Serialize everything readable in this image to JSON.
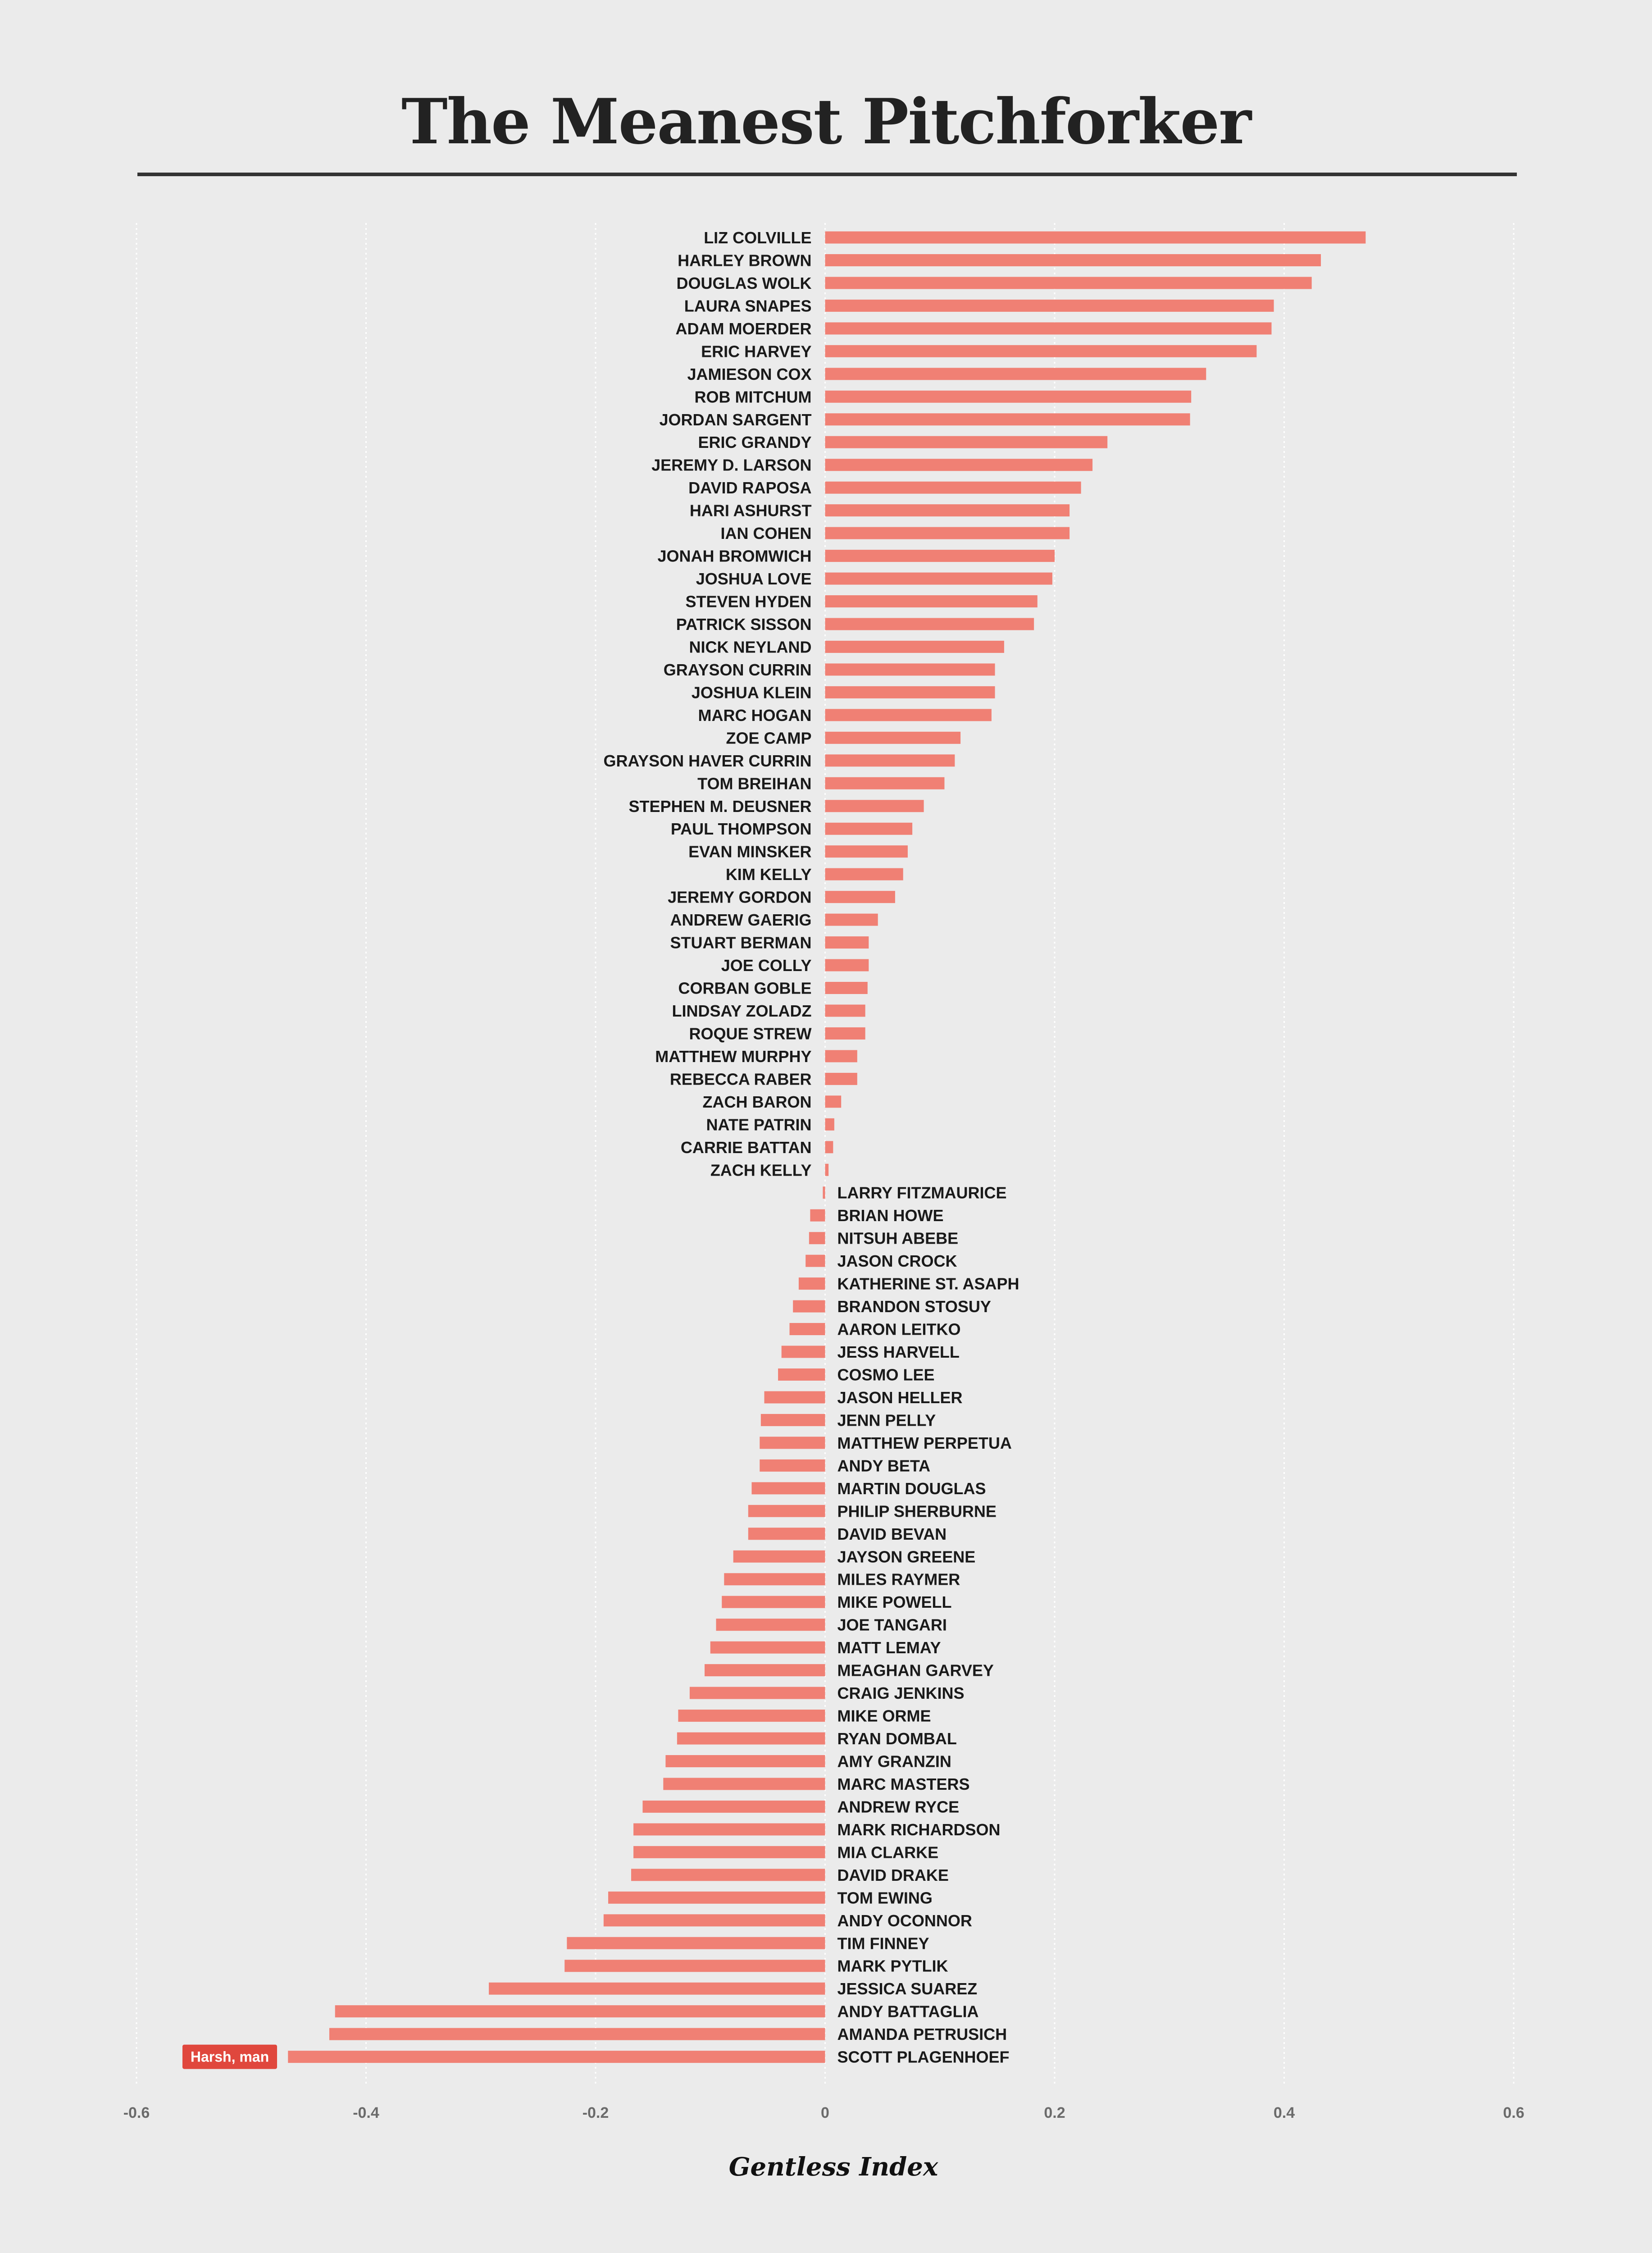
{
  "chart_data": {
    "type": "bar",
    "orientation": "horizontal",
    "title": "The Meanest Pitchforker",
    "xlabel": "Gentless Index",
    "ylabel": "",
    "xlim": [
      -0.6,
      0.6
    ],
    "xticks": [
      "-0.6",
      "-0.4",
      "-0.2",
      "0",
      "0.2",
      "0.4",
      "0.6"
    ],
    "grid": "vertical dotted",
    "bar_color": "#f08074",
    "categories": [
      "LIZ COLVILLE",
      "HARLEY BROWN",
      "DOUGLAS WOLK",
      "LAURA SNAPES",
      "ADAM MOERDER",
      "ERIC HARVEY",
      "JAMIESON COX",
      "ROB MITCHUM",
      "JORDAN SARGENT",
      "ERIC GRANDY",
      "JEREMY D. LARSON",
      "DAVID RAPOSA",
      "HARI ASHURST",
      "IAN COHEN",
      "JONAH BROMWICH",
      "JOSHUA LOVE",
      "STEVEN HYDEN",
      "PATRICK SISSON",
      "NICK NEYLAND",
      "GRAYSON CURRIN",
      "JOSHUA KLEIN",
      "MARC HOGAN",
      "ZOE CAMP",
      "GRAYSON HAVER CURRIN",
      "TOM BREIHAN",
      "STEPHEN M. DEUSNER",
      "PAUL THOMPSON",
      "EVAN MINSKER",
      "KIM KELLY",
      "JEREMY GORDON",
      "ANDREW GAERIG",
      "STUART BERMAN",
      "JOE COLLY",
      "CORBAN GOBLE",
      "LINDSAY ZOLADZ",
      "ROQUE STREW",
      "MATTHEW MURPHY",
      "REBECCA RABER",
      "ZACH BARON",
      "NATE PATRIN",
      "CARRIE BATTAN",
      "ZACH KELLY",
      "LARRY FITZMAURICE",
      "BRIAN HOWE",
      "NITSUH ABEBE",
      "JASON CROCK",
      "KATHERINE ST. ASAPH",
      "BRANDON STOSUY",
      "AARON LEITKO",
      "JESS HARVELL",
      "COSMO LEE",
      "JASON HELLER",
      "JENN PELLY",
      "MATTHEW PERPETUA",
      "ANDY BETA",
      "MARTIN DOUGLAS",
      "PHILIP SHERBURNE",
      "DAVID BEVAN",
      "JAYSON GREENE",
      "MILES RAYMER",
      "MIKE POWELL",
      "JOE TANGARI",
      "MATT LEMAY",
      "MEAGHAN GARVEY",
      "CRAIG JENKINS",
      "MIKE ORME",
      "RYAN DOMBAL",
      "AMY GRANZIN",
      "MARC MASTERS",
      "ANDREW RYCE",
      "MARK RICHARDSON",
      "MIA CLARKE",
      "DAVID DRAKE",
      "TOM EWING",
      "ANDY OCONNOR",
      "TIM FINNEY",
      "MARK PYTLIK",
      "JESSICA SUAREZ",
      "ANDY BATTAGLIA",
      "AMANDA PETRUSICH",
      "SCOTT PLAGENHOEF"
    ],
    "values": [
      0.471,
      0.432,
      0.424,
      0.391,
      0.389,
      0.376,
      0.332,
      0.319,
      0.318,
      0.246,
      0.233,
      0.223,
      0.213,
      0.213,
      0.2,
      0.198,
      0.185,
      0.182,
      0.156,
      0.148,
      0.148,
      0.145,
      0.118,
      0.113,
      0.104,
      0.086,
      0.076,
      0.072,
      0.068,
      0.061,
      0.046,
      0.038,
      0.038,
      0.037,
      0.035,
      0.035,
      0.028,
      0.028,
      0.014,
      0.008,
      0.007,
      0.003,
      -0.002,
      -0.013,
      -0.014,
      -0.017,
      -0.023,
      -0.028,
      -0.031,
      -0.038,
      -0.041,
      -0.053,
      -0.056,
      -0.057,
      -0.057,
      -0.064,
      -0.067,
      -0.067,
      -0.08,
      -0.088,
      -0.09,
      -0.095,
      -0.1,
      -0.105,
      -0.118,
      -0.128,
      -0.129,
      -0.139,
      -0.141,
      -0.159,
      -0.167,
      -0.167,
      -0.169,
      -0.189,
      -0.193,
      -0.225,
      -0.227,
      -0.293,
      -0.427,
      -0.432,
      -0.468
    ],
    "annotation": {
      "text": "Harsh, man",
      "target": "SCOTT PLAGENHOEF",
      "color": "#e0473d"
    }
  }
}
